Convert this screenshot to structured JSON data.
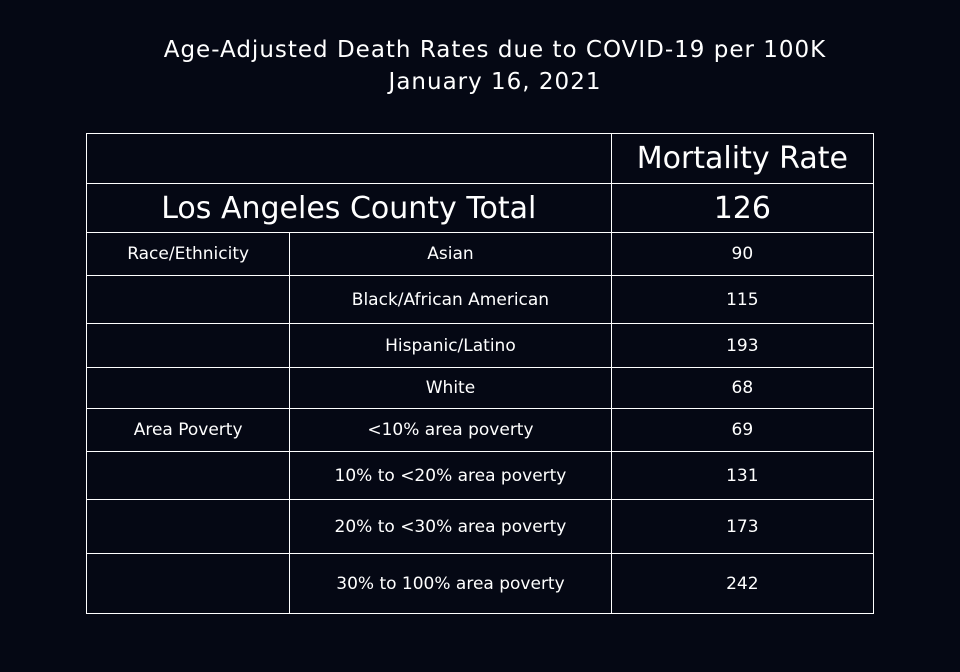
{
  "header": {
    "title": "Age-Adjusted Death Rates due to COVID-19 per 100K",
    "subtitle": "January 16, 2021"
  },
  "chart_data": {
    "type": "table",
    "columns": [
      "",
      "",
      "Mortality Rate"
    ],
    "total": {
      "label": "Los Angeles County Total",
      "value": "126"
    },
    "rows": [
      {
        "group": "Race/Ethnicity",
        "category": "Asian",
        "value": "90"
      },
      {
        "group": "",
        "category": "Black/African American",
        "value": "115"
      },
      {
        "group": "",
        "category": "Hispanic/Latino",
        "value": "193"
      },
      {
        "group": "",
        "category": "White",
        "value": "68"
      },
      {
        "group": "Area Poverty",
        "category": "<10% area poverty",
        "value": "69"
      },
      {
        "group": "",
        "category": "10% to <20% area poverty",
        "value": "131"
      },
      {
        "group": "",
        "category": "20% to <30% area poverty",
        "value": "173"
      },
      {
        "group": "",
        "category": "30% to 100% area poverty",
        "value": "242"
      }
    ]
  }
}
